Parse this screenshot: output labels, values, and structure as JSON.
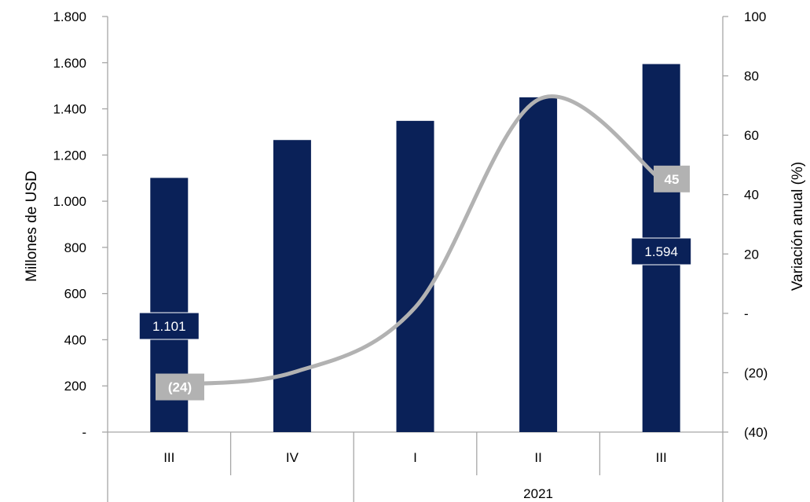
{
  "chart_data": {
    "type": "bar",
    "title": "",
    "categories": [
      "III",
      "IV",
      "I",
      "II",
      "III"
    ],
    "category_groups": [
      {
        "label": "",
        "span": [
          0,
          1
        ]
      },
      {
        "label": "2021",
        "span": [
          2,
          4
        ]
      }
    ],
    "series": [
      {
        "type": "bar",
        "axis": "left",
        "color": "#0a2158",
        "values": [
          1101,
          1265,
          1348,
          1450,
          1594
        ],
        "data_labels": {
          "0": "1.101",
          "4": "1.594"
        }
      },
      {
        "type": "line",
        "axis": "right",
        "color": "#b2b2b2",
        "smooth": true,
        "values": [
          -24,
          -20,
          2,
          72,
          45
        ],
        "data_labels": {
          "0": "(24)",
          "4": "45"
        }
      }
    ],
    "y_left": {
      "label": "Millones de USD",
      "lim": [
        0,
        1800
      ],
      "ticks": [
        0,
        200,
        400,
        600,
        800,
        1000,
        1200,
        1400,
        1600,
        1800
      ],
      "tick_labels": [
        "-",
        "200",
        "400",
        "600",
        "800",
        "1.000",
        "1.200",
        "1.400",
        "1.600",
        "1.800"
      ]
    },
    "y_right": {
      "label": "Variación anual (%)",
      "lim": [
        -40,
        100
      ],
      "ticks": [
        -40,
        -20,
        0,
        20,
        40,
        60,
        80,
        100
      ],
      "tick_labels": [
        "(40)",
        "(20)",
        "-",
        "20",
        "40",
        "60",
        "80",
        "100"
      ]
    },
    "grid": false,
    "legend": "none",
    "colors": {
      "bar": "#0a2158",
      "line": "#b2b2b2",
      "axis": "#a6a6a6",
      "bar_label_text": "#ffffff",
      "line_label_text": "#ffffff"
    }
  }
}
